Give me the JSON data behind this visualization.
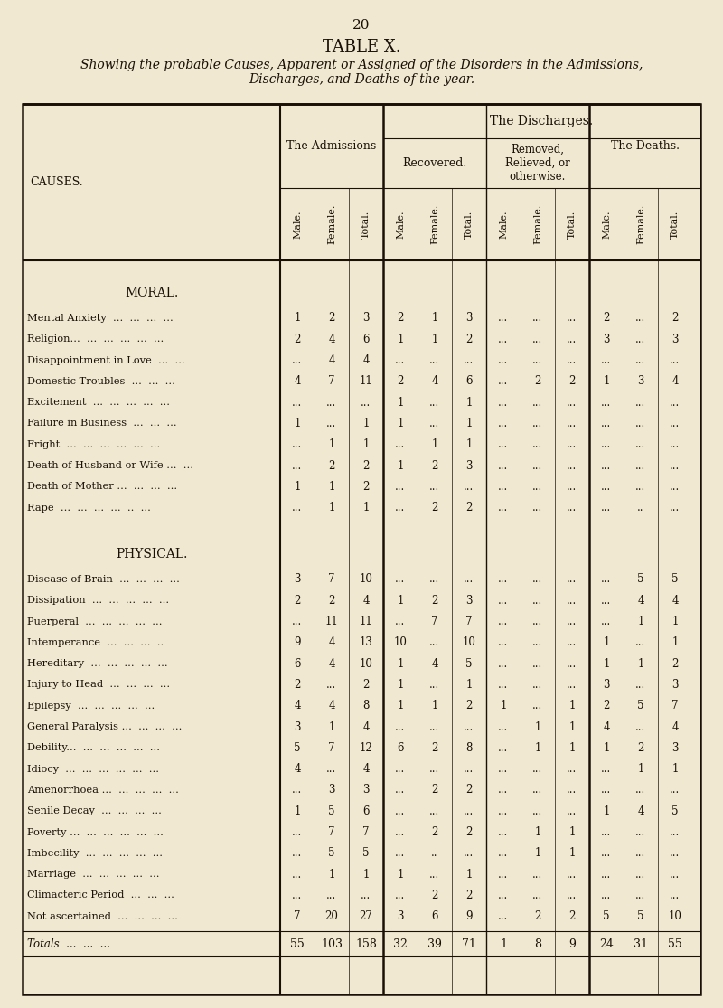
{
  "page_number": "20",
  "title": "TABLE X.",
  "subtitle": "Showing the probable Causes, Apparent or Assigned of the Disorders in the Admissions,\nDischarges, and Deaths of the year.",
  "bg_color": "#f0e8d0",
  "text_color": "#1a1008",
  "section_moral": "MORAL.",
  "section_physical": "PHYSICAL.",
  "rows_moral": [
    [
      "Mental Anxiety  ...  ...  ...  ...",
      "1",
      "2",
      "3",
      "2",
      "1",
      "3",
      "...",
      "...",
      "...",
      "2",
      "...",
      "2"
    ],
    [
      "Religion...  ...  ...  ...  ...  ...",
      "2",
      "4",
      "6",
      "1",
      "1",
      "2",
      "...",
      "...",
      "...",
      "3",
      "...",
      "3"
    ],
    [
      "Disappointment in Love  ...  ...",
      "...",
      "4",
      "4",
      "...",
      "...",
      "...",
      "...",
      "...",
      "...",
      "...",
      "...",
      "..."
    ],
    [
      "Domestic Troubles  ...  ...  ...",
      "4",
      "7",
      "11",
      "2",
      "4",
      "6",
      "...",
      "2",
      "2",
      "1",
      "3",
      "4"
    ],
    [
      "Excitement  ...  ...  ...  ...  ...",
      "...",
      "...",
      "...",
      "1",
      "...",
      "1",
      "...",
      "...",
      "...",
      "...",
      "...",
      "..."
    ],
    [
      "Failure in Business  ...  ...  ...",
      "1",
      "...",
      "1",
      "1",
      "...",
      "1",
      "...",
      "...",
      "...",
      "...",
      "...",
      "..."
    ],
    [
      "Fright  ...  ...  ...  ...  ...  ...",
      "...",
      "1",
      "1",
      "...",
      "1",
      "1",
      "...",
      "...",
      "...",
      "...",
      "...",
      "..."
    ],
    [
      "Death of Husband or Wife ...  ...",
      "...",
      "2",
      "2",
      "1",
      "2",
      "3",
      "...",
      "...",
      "...",
      "...",
      "...",
      "..."
    ],
    [
      "Death of Mother ...  ...  ...  ...",
      "1",
      "1",
      "2",
      "...",
      "...",
      "...",
      "...",
      "...",
      "...",
      "...",
      "...",
      "..."
    ],
    [
      "Rape  ...  ...  ...  ...  ..  ...",
      "...",
      "1",
      "1",
      "...",
      "2",
      "2",
      "...",
      "...",
      "...",
      "...",
      "..",
      "..."
    ]
  ],
  "rows_physical": [
    [
      "Disease of Brain  ...  ...  ...  ...",
      "3",
      "7",
      "10",
      "...",
      "...",
      "...",
      "...",
      "...",
      "...",
      "...",
      "5",
      "5"
    ],
    [
      "Dissipation  ...  ...  ...  ...  ...",
      "2",
      "2",
      "4",
      "1",
      "2",
      "3",
      "...",
      "...",
      "...",
      "...",
      "4",
      "4"
    ],
    [
      "Puerperal  ...  ...  ...  ...  ...",
      "...",
      "11",
      "11",
      "...",
      "7",
      "7",
      "...",
      "...",
      "...",
      "...",
      "1",
      "1"
    ],
    [
      "Intemperance  ...  ...  ...  ..",
      "9",
      "4",
      "13",
      "10",
      "...",
      "10",
      "...",
      "...",
      "...",
      "1",
      "...",
      "1"
    ],
    [
      "Hereditary  ...  ...  ...  ...  ...",
      "6",
      "4",
      "10",
      "1",
      "4",
      "5",
      "...",
      "...",
      "...",
      "1",
      "1",
      "2"
    ],
    [
      "Injury to Head  ...  ...  ...  ...",
      "2",
      "...",
      "2",
      "1",
      "...",
      "1",
      "...",
      "...",
      "...",
      "3",
      "...",
      "3"
    ],
    [
      "Epilepsy  ...  ...  ...  ...  ...",
      "4",
      "4",
      "8",
      "1",
      "1",
      "2",
      "1",
      "...",
      "1",
      "2",
      "5",
      "7"
    ],
    [
      "General Paralysis ...  ...  ...  ...",
      "3",
      "1",
      "4",
      "...",
      "...",
      "...",
      "...",
      "1",
      "1",
      "4",
      "...",
      "4"
    ],
    [
      "Debility...  ...  ...  ...  ...  ...",
      "5",
      "7",
      "12",
      "6",
      "2",
      "8",
      "...",
      "1",
      "1",
      "1",
      "2",
      "3"
    ],
    [
      "Idiocy  ...  ...  ...  ...  ...  ...",
      "4",
      "...",
      "4",
      "...",
      "...",
      "...",
      "...",
      "...",
      "...",
      "...",
      "1",
      "1"
    ],
    [
      "Amenorrhoea ...  ...  ...  ...  ...",
      "...",
      "3",
      "3",
      "...",
      "2",
      "2",
      "...",
      "...",
      "...",
      "...",
      "...",
      "..."
    ],
    [
      "Senile Decay  ...  ...  ...  ...",
      "1",
      "5",
      "6",
      "...",
      "...",
      "...",
      "...",
      "...",
      "...",
      "1",
      "4",
      "5"
    ],
    [
      "Poverty ...  ...  ...  ...  ...  ...",
      "...",
      "7",
      "7",
      "...",
      "2",
      "2",
      "...",
      "1",
      "1",
      "...",
      "...",
      "..."
    ],
    [
      "Imbecility  ...  ...  ...  ...  ...",
      "...",
      "5",
      "5",
      "...",
      "..",
      "...",
      "...",
      "1",
      "1",
      "...",
      "...",
      "..."
    ],
    [
      "Marriage  ...  ...  ...  ...  ...",
      "...",
      "1",
      "1",
      "1",
      "...",
      "1",
      "...",
      "...",
      "...",
      "...",
      "...",
      "..."
    ],
    [
      "Climacteric Period  ...  ...  ...",
      "...",
      "...",
      "...",
      "...",
      "2",
      "2",
      "...",
      "...",
      "...",
      "...",
      "...",
      "..."
    ],
    [
      "Not ascertained  ...  ...  ...  ...",
      "7",
      "20",
      "27",
      "3",
      "6",
      "9",
      "...",
      "2",
      "2",
      "5",
      "5",
      "10"
    ]
  ],
  "totals_row": [
    "Totals  ...  ...  ...",
    "55",
    "103",
    "158",
    "32",
    "39",
    "71",
    "1",
    "8",
    "9",
    "24",
    "31",
    "55"
  ]
}
